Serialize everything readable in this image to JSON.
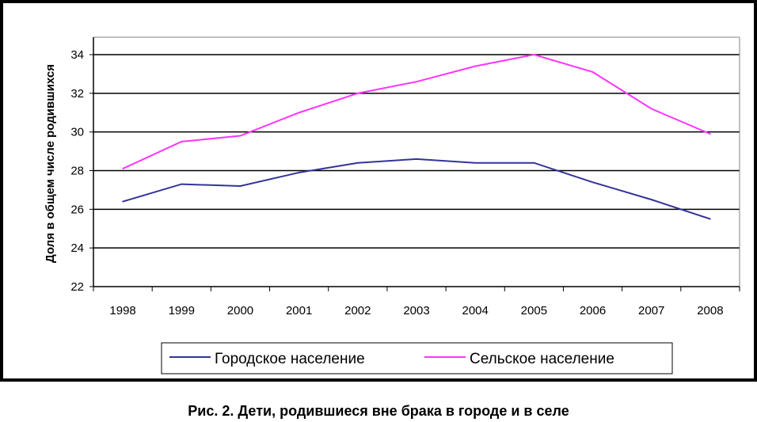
{
  "chart_data": {
    "type": "line",
    "categories": [
      "1998",
      "1999",
      "2000",
      "2001",
      "2002",
      "2003",
      "2004",
      "2005",
      "2006",
      "2007",
      "2008"
    ],
    "series": [
      {
        "name": "Городское население",
        "color": "#333399",
        "values": [
          26.4,
          27.3,
          27.2,
          27.9,
          28.4,
          28.6,
          28.4,
          28.4,
          27.4,
          26.5,
          25.5
        ]
      },
      {
        "name": "Сельское население",
        "color": "#ff33ff",
        "values": [
          28.1,
          29.5,
          29.8,
          31.0,
          32.0,
          32.6,
          33.4,
          34.0,
          33.1,
          31.2,
          29.9
        ]
      }
    ],
    "ylabel": "Доля в общем числе родившихся",
    "xlabel": "",
    "ylim": [
      22,
      34
    ],
    "yticks": [
      22,
      24,
      26,
      28,
      30,
      32,
      34
    ],
    "grid": true,
    "legend_position": "bottom"
  },
  "caption": "Рис. 2. Дети, родившиеся вне брака в городе и в селе"
}
